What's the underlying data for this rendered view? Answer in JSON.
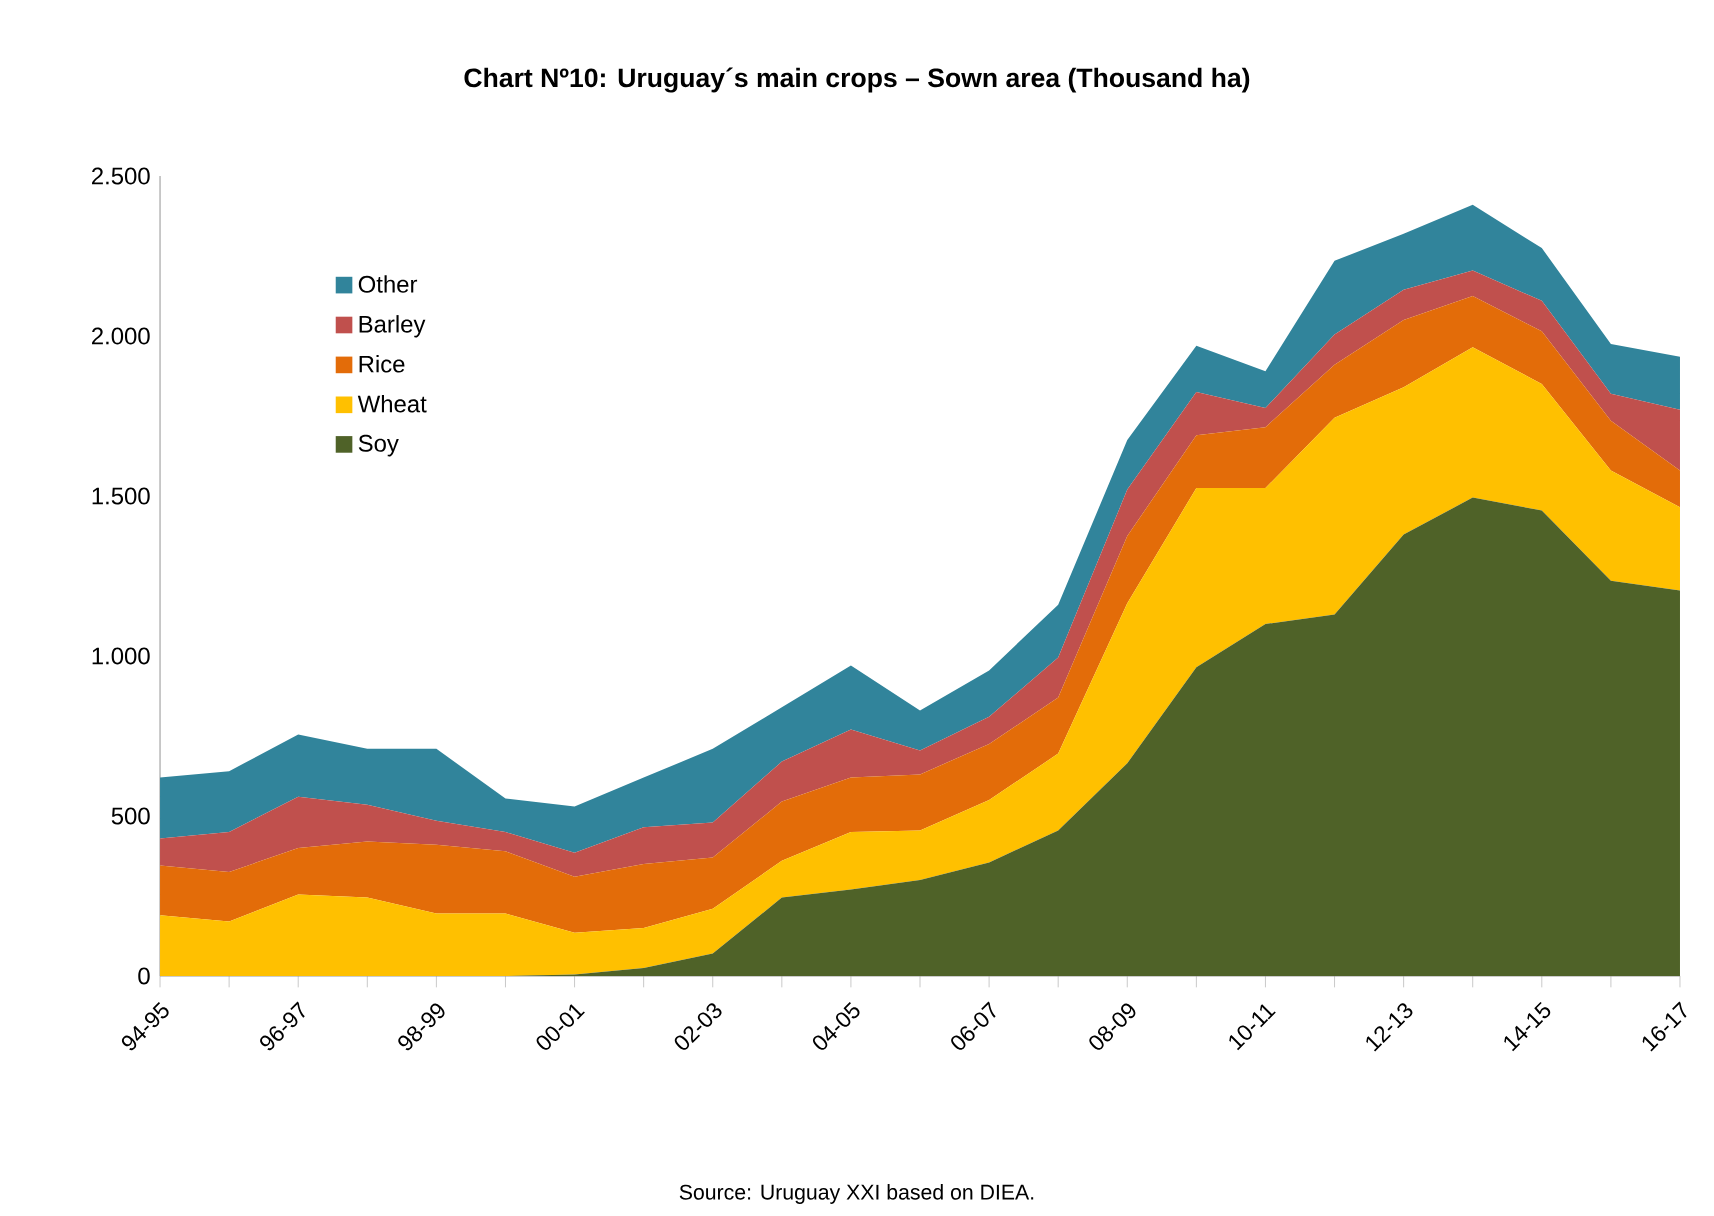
{
  "chart_data": {
    "type": "area",
    "title": "Chart Nº10: Uruguay´s main crops – Sown area (Thousand ha)",
    "categories": [
      "94-95",
      null,
      "96-97",
      null,
      "98-99",
      null,
      "00-01",
      null,
      "02-03",
      null,
      "04-05",
      null,
      "06-07",
      null,
      "08-09",
      null,
      "10-11",
      null,
      "12-13",
      null,
      "14-15",
      null,
      "16-17"
    ],
    "stacked": true,
    "series": [
      {
        "name": "Soy",
        "color": "#4f6228",
        "values": [
          0,
          0,
          0,
          0,
          0,
          0,
          5,
          25,
          70,
          245,
          270,
          300,
          355,
          455,
          665,
          965,
          1100,
          1130,
          1380,
          1495,
          1455,
          1235,
          1205
        ]
      },
      {
        "name": "Wheat",
        "color": "#ffc000",
        "values": [
          190,
          170,
          255,
          245,
          195,
          195,
          130,
          125,
          140,
          115,
          180,
          155,
          195,
          240,
          500,
          560,
          425,
          615,
          460,
          470,
          395,
          345,
          260
        ]
      },
      {
        "name": "Rice",
        "color": "#e36c09",
        "values": [
          155,
          155,
          145,
          175,
          215,
          195,
          175,
          200,
          160,
          185,
          170,
          175,
          175,
          175,
          210,
          165,
          190,
          165,
          210,
          160,
          165,
          155,
          115
        ]
      },
      {
        "name": "Barley",
        "color": "#c0504d",
        "values": [
          85,
          125,
          160,
          115,
          75,
          60,
          75,
          115,
          110,
          125,
          150,
          75,
          85,
          125,
          145,
          135,
          60,
          95,
          95,
          80,
          95,
          85,
          190
        ]
      },
      {
        "name": "Other",
        "color": "#31849b",
        "values": [
          190,
          190,
          195,
          175,
          225,
          105,
          145,
          155,
          230,
          170,
          200,
          125,
          145,
          165,
          155,
          145,
          115,
          230,
          175,
          205,
          165,
          155,
          165
        ]
      }
    ],
    "ylim": [
      0,
      2500
    ],
    "yticks": [
      0,
      500,
      {
        "value": 1000,
        "label": "1.000"
      },
      {
        "value": 1500,
        "label": "1.500"
      },
      {
        "value": 2000,
        "label": "2.000"
      },
      {
        "value": 2500,
        "label": "2.500"
      }
    ],
    "legend": "top left",
    "annotations": [
      "Source: Uruguay XXI based on DIEA."
    ]
  }
}
